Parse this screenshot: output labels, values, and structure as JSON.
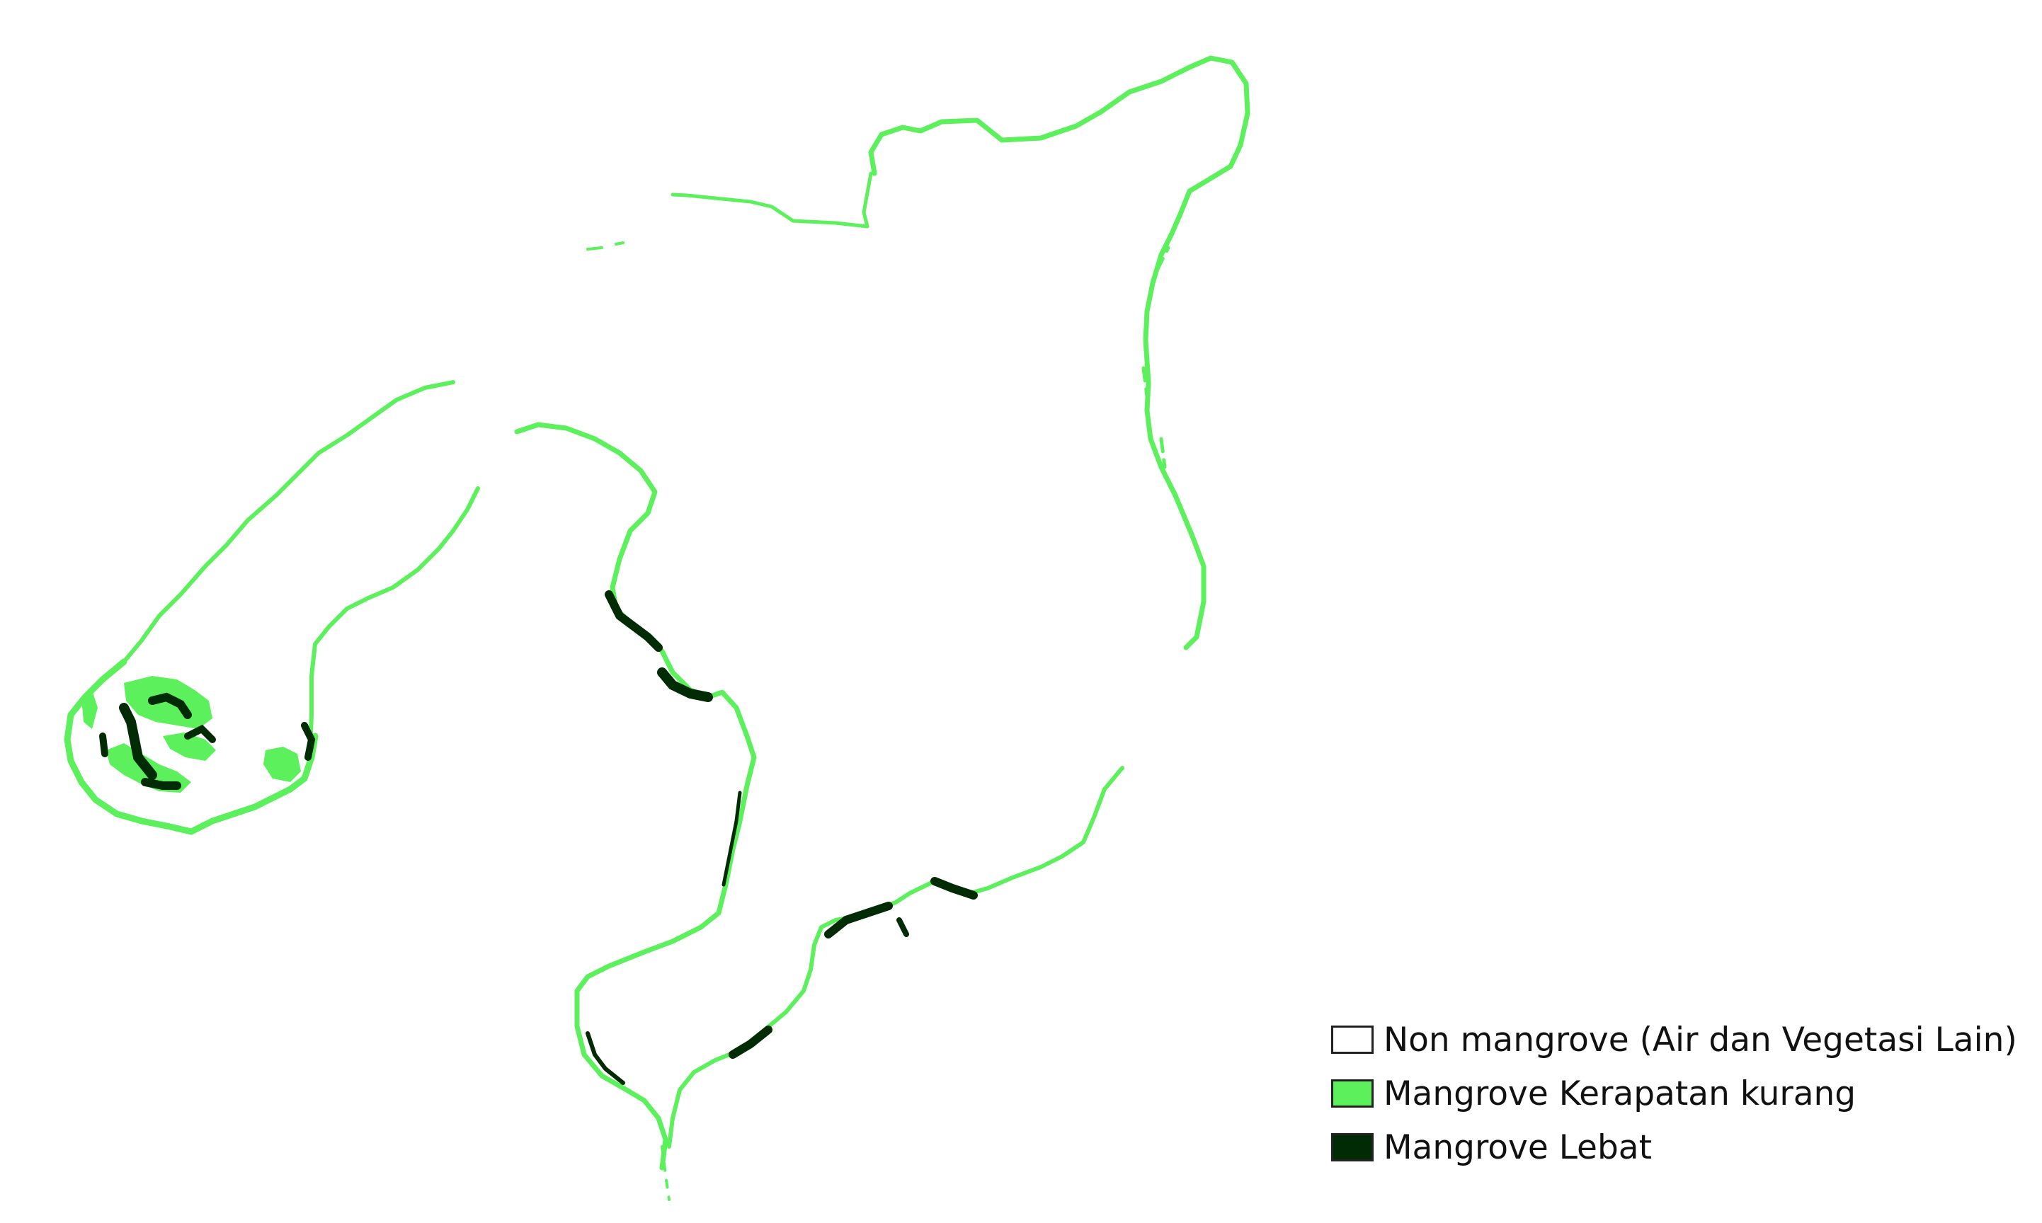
{
  "colors": {
    "non_mangrove": "#ffffff",
    "mangrove_sparse": "#5cf05c",
    "mangrove_dense": "#012b04",
    "outline": "#222222"
  },
  "legend": [
    {
      "label": "Non mangrove (Air dan Vegetasi Lain)",
      "color": "#ffffff"
    },
    {
      "label": "Mangrove Kerapatan kurang",
      "color": "#5cf05c"
    },
    {
      "label": "Mangrove Lebat",
      "color": "#012b04"
    }
  ]
}
